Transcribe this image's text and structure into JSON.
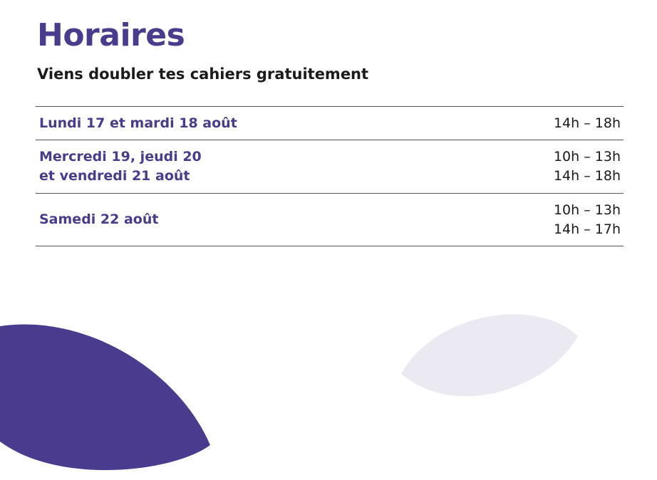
{
  "header": {
    "title": "Horaires",
    "subtitle": "Viens doubler tes cahiers gratuitement"
  },
  "table": {
    "rows": [
      {
        "day": [
          "Lundi 17 et mardi 18 août"
        ],
        "hours": [
          "14h – 18h"
        ]
      },
      {
        "day": [
          "Mercredi 19, jeudi 20",
          "et vendredi 21 août"
        ],
        "hours": [
          "10h – 13h",
          "14h – 18h"
        ]
      },
      {
        "day": [
          "Samedi 22 août"
        ],
        "hours": [
          "10h – 13h",
          "14h – 17h"
        ]
      }
    ]
  }
}
